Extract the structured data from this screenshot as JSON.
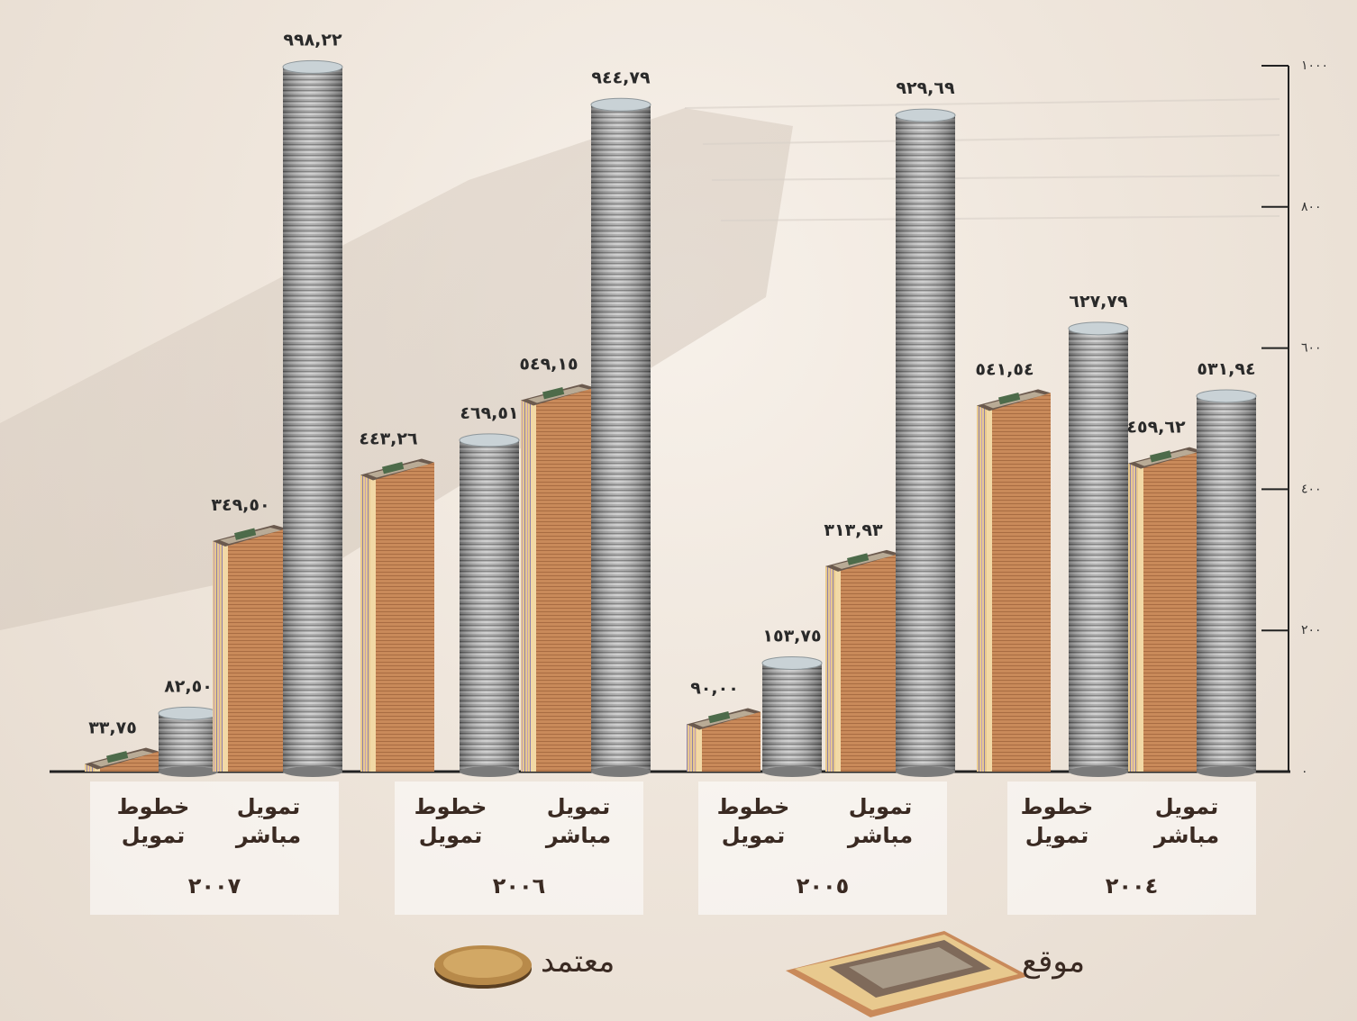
{
  "chart_data": {
    "type": "bar",
    "ylim": [
      0,
      1000
    ],
    "yticks": [
      0,
      200,
      400,
      600,
      800,
      1000
    ],
    "ytick_labels": [
      "٠",
      "٢٠٠",
      "٤٠٠",
      "٦٠٠",
      "٨٠٠",
      "١٠٠٠"
    ],
    "groups": [
      {
        "year": "٢٠٠٧",
        "categories": [
          {
            "label_line1": "خطوط",
            "label_line2": "تمويل",
            "signed": 33.75,
            "signed_label": "٣٣,٧٥",
            "approved": 82.5,
            "approved_label": "٨٢,٥٠"
          },
          {
            "label_line1": "تمويل",
            "label_line2": "مباشر",
            "signed": 349.5,
            "signed_label": "٣٤٩,٥٠",
            "approved": 998.22,
            "approved_label": "٩٩٨,٢٢"
          }
        ]
      },
      {
        "year": "٢٠٠٦",
        "categories": [
          {
            "label_line1": "خطوط",
            "label_line2": "تمويل",
            "signed": 443.26,
            "signed_label": "٤٤٣,٢٦",
            "approved": 469.51,
            "approved_label": "٤٦٩,٥١"
          },
          {
            "label_line1": "تمويل",
            "label_line2": "مباشر",
            "signed": 549.15,
            "signed_label": "٥٤٩,١٥",
            "approved": 944.79,
            "approved_label": "٩٤٤,٧٩"
          }
        ]
      },
      {
        "year": "٢٠٠٥",
        "categories": [
          {
            "label_line1": "خطوط",
            "label_line2": "تمويل",
            "signed": 90.0,
            "signed_label": "٩٠,٠٠",
            "approved": 153.75,
            "approved_label": "١٥٣,٧٥"
          },
          {
            "label_line1": "تمويل",
            "label_line2": "مباشر",
            "signed": 313.93,
            "signed_label": "٣١٣,٩٣",
            "approved": 929.69,
            "approved_label": "٩٢٩,٦٩"
          }
        ]
      },
      {
        "year": "٢٠٠٤",
        "categories": [
          {
            "label_line1": "خطوط",
            "label_line2": "تمويل",
            "signed": 541.54,
            "signed_label": "٥٤١,٥٤",
            "approved": 627.79,
            "approved_label": "٦٢٧,٧٩"
          },
          {
            "label_line1": "تمويل",
            "label_line2": "مباشر",
            "signed": 459.62,
            "signed_label": "٤٥٩,٦٢",
            "approved": 531.94,
            "approved_label": "٥٣١,٩٤"
          }
        ]
      }
    ],
    "legend": {
      "approved": "معتمد",
      "signed": "موقع"
    },
    "colors": {
      "banknote_face": "#c98a5a",
      "banknote_edge": "#e8c98e",
      "coin": "#9a9a9a",
      "axis": "#222222"
    }
  }
}
